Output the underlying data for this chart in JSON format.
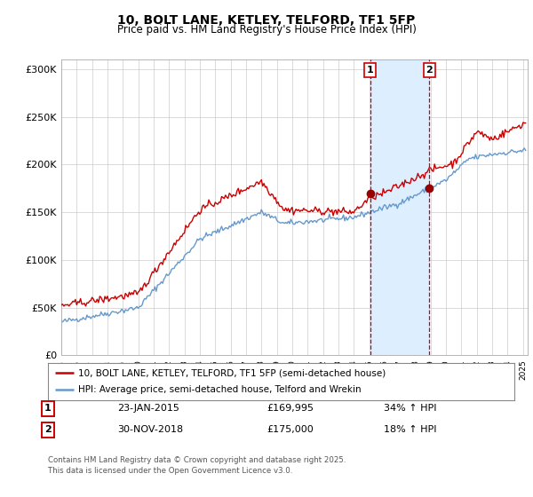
{
  "title": "10, BOLT LANE, KETLEY, TELFORD, TF1 5FP",
  "subtitle": "Price paid vs. HM Land Registry's House Price Index (HPI)",
  "legend_line1": "10, BOLT LANE, KETLEY, TELFORD, TF1 5FP (semi-detached house)",
  "legend_line2": "HPI: Average price, semi-detached house, Telford and Wrekin",
  "purchase1_date": "23-JAN-2015",
  "purchase1_price": 169995,
  "purchase1_pct": "34% ↑ HPI",
  "purchase2_date": "30-NOV-2018",
  "purchase2_price": 175000,
  "purchase2_pct": "18% ↑ HPI",
  "footer": "Contains HM Land Registry data © Crown copyright and database right 2025.\nThis data is licensed under the Open Government Licence v3.0.",
  "red_line_color": "#cc0000",
  "blue_line_color": "#6699cc",
  "marker_color": "#990000",
  "shaded_color": "#ddeeff",
  "dashed_line_color": "#cc0000",
  "background_color": "#ffffff",
  "grid_color": "#cccccc",
  "ylim": [
    0,
    310000
  ],
  "yticks": [
    0,
    50000,
    100000,
    150000,
    200000,
    250000,
    300000
  ],
  "ytick_labels": [
    "£0",
    "£50K",
    "£100K",
    "£150K",
    "£200K",
    "£250K",
    "£300K"
  ],
  "xstart_year": 1995,
  "xend_year": 2025,
  "purchase1_year": 2015.07,
  "purchase2_year": 2018.92
}
